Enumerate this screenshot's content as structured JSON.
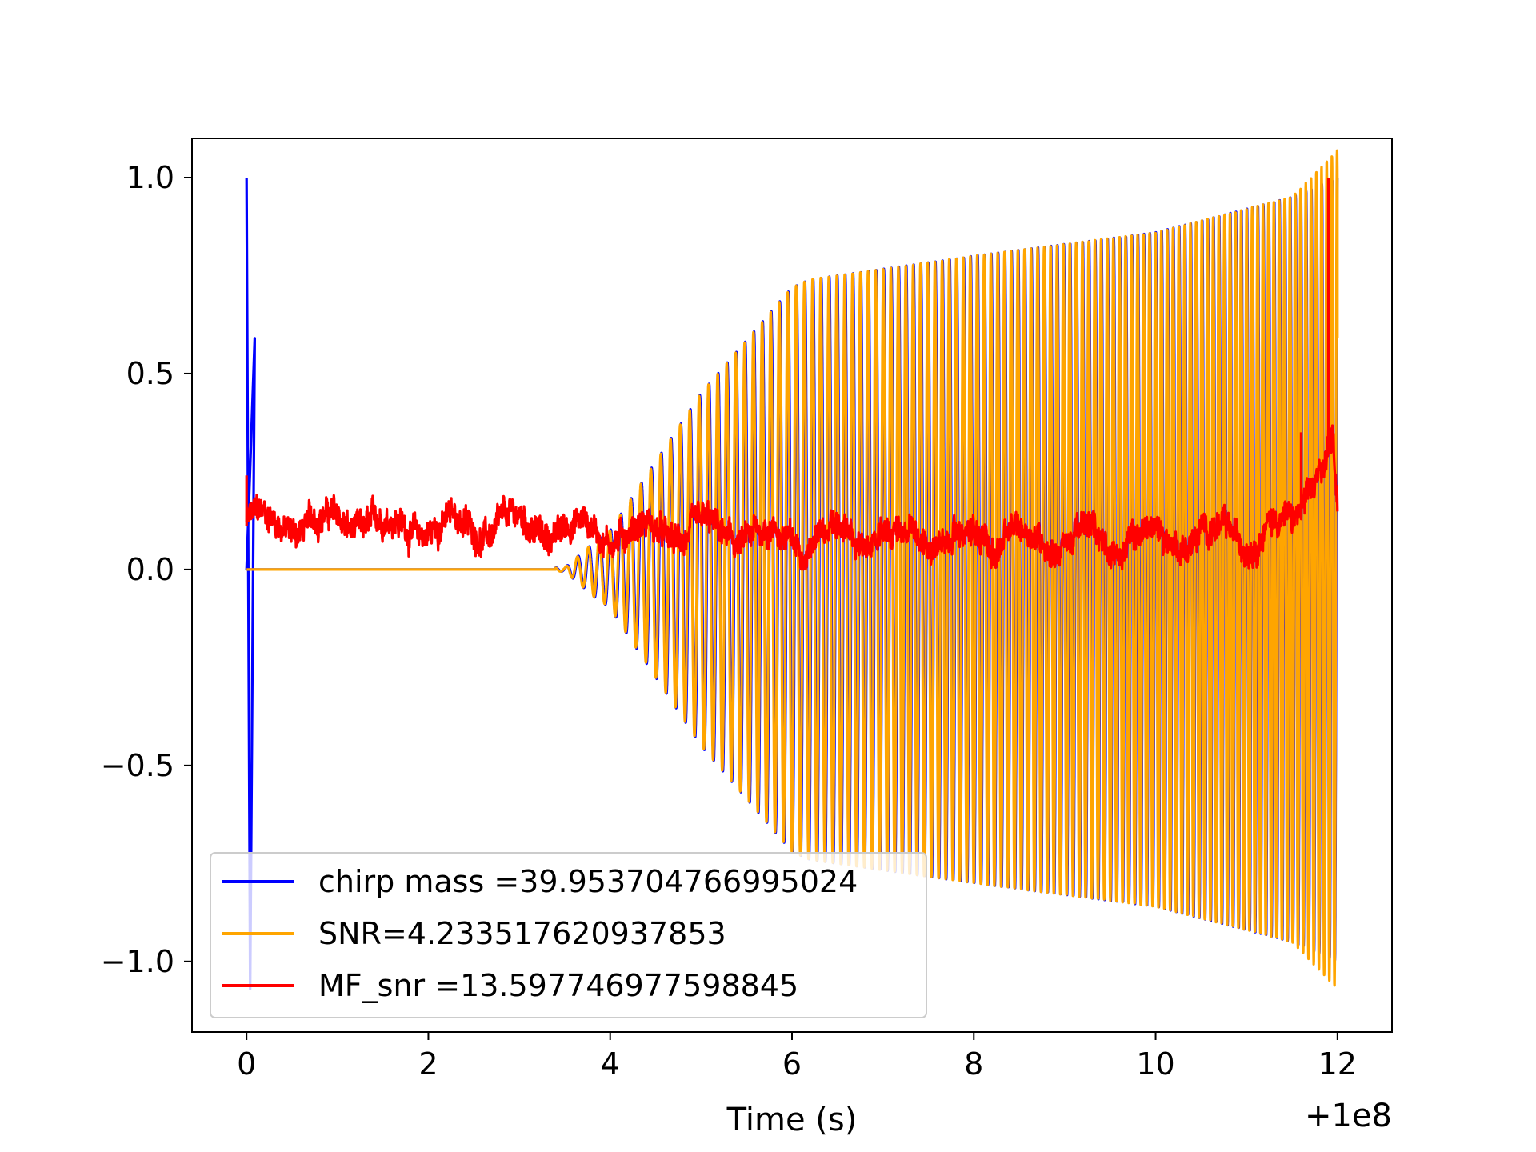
{
  "chart_data": {
    "type": "line",
    "title": "",
    "xlabel": "Time (s)",
    "ylabel": "",
    "x_offset_label": "+1e8",
    "xlim": [
      -0.6,
      12.6
    ],
    "ylim": [
      -1.18,
      1.1
    ],
    "x_ticks": [
      0,
      2,
      4,
      6,
      8,
      10,
      12
    ],
    "x_tick_labels": [
      "0",
      "2",
      "4",
      "6",
      "8",
      "10",
      "12"
    ],
    "y_ticks": [
      -1.0,
      -0.5,
      0.0,
      0.5,
      1.0
    ],
    "y_tick_labels": [
      "−1.0",
      "−0.5",
      "0.0",
      "0.5",
      "1.0"
    ],
    "grid": false,
    "legend_position": "lower-left",
    "series": [
      {
        "name": "chirp mass =39.953704766995024",
        "color": "#0000ff",
        "kind": "chirp-oscillation",
        "x_range": [
          0,
          12
        ],
        "envelope": {
          "x": [
            0,
            3.5,
            4.0,
            5.0,
            6.0,
            6.2,
            8.0,
            10.0,
            11.5,
            12.0
          ],
          "amp": [
            0.0,
            0.0,
            0.1,
            0.45,
            0.72,
            0.74,
            0.8,
            0.86,
            0.95,
            1.0
          ]
        },
        "spikes": [
          {
            "x": 0.0,
            "y": 1.0
          },
          {
            "x": 0.04,
            "y": -1.07
          },
          {
            "x": 0.09,
            "y": 0.59
          }
        ]
      },
      {
        "name": "SNR=4.233517620937853",
        "color": "#ffa500",
        "kind": "chirp-oscillation",
        "x_range": [
          0,
          12
        ],
        "envelope": {
          "x": [
            0,
            3.5,
            4.0,
            5.0,
            6.0,
            6.2,
            8.0,
            10.0,
            11.5,
            12.0
          ],
          "amp": [
            0.0,
            0.0,
            0.1,
            0.45,
            0.72,
            0.74,
            0.8,
            0.86,
            0.95,
            1.07
          ]
        },
        "end_value": 0.59
      },
      {
        "name": "MF_snr =13.597746977598845",
        "color": "#ff0000",
        "kind": "noisy-trace",
        "x_range": [
          0,
          12
        ],
        "baseline": {
          "x": [
            0,
            1,
            2,
            3,
            4,
            5,
            6,
            7,
            8,
            9,
            10,
            11,
            11.5,
            11.8,
            11.95,
            12.0
          ],
          "y": [
            0.12,
            0.12,
            0.11,
            0.11,
            0.1,
            0.09,
            0.08,
            0.08,
            0.08,
            0.08,
            0.08,
            0.09,
            0.12,
            0.25,
            0.34,
            0.16
          ]
        },
        "peaks": [
          {
            "x": 0.0,
            "y": 0.24
          },
          {
            "x": 11.9,
            "y": 1.0
          },
          {
            "x": 11.6,
            "y": 0.35
          }
        ]
      }
    ]
  }
}
